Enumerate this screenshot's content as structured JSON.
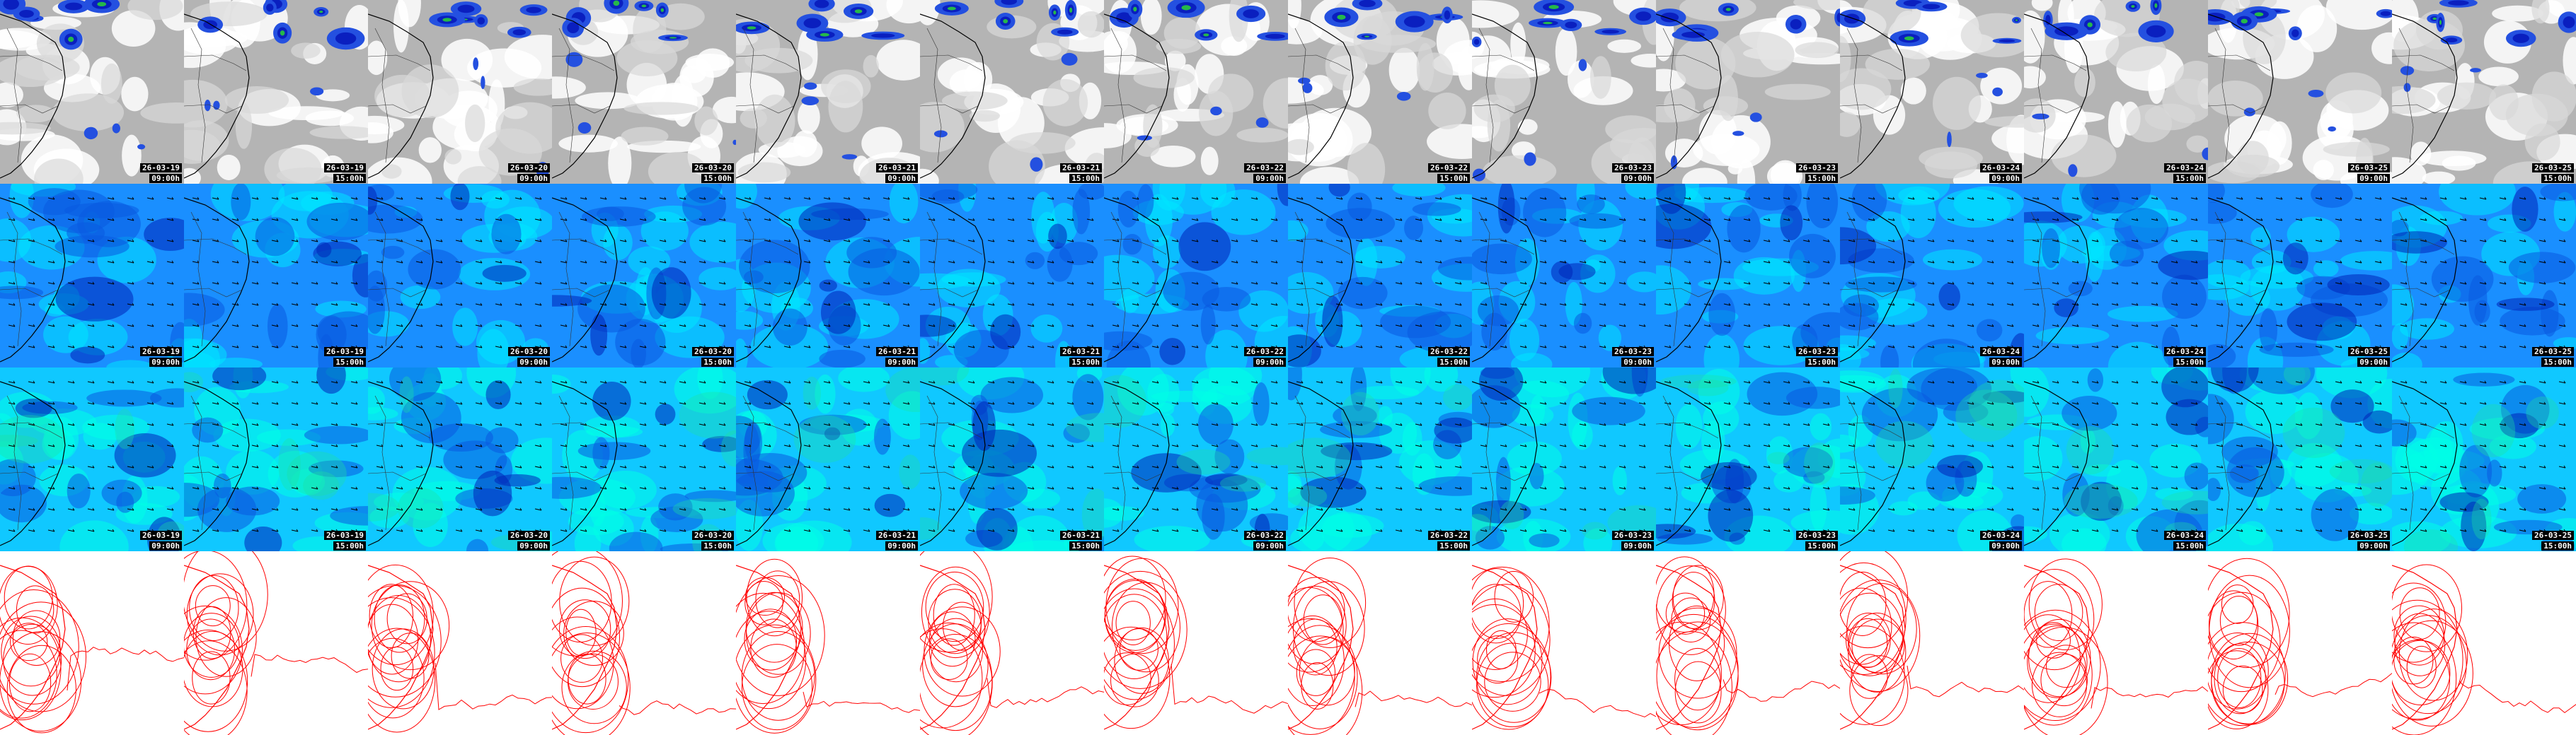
{
  "rows": [
    {
      "name": "cloud-precip-row",
      "kind": "cloud",
      "background": "#b4b4b4",
      "accent": [
        "#2450e0",
        "#0a1fbf",
        "#25b84a",
        "#ffffff"
      ]
    },
    {
      "name": "wind-low-row",
      "kind": "wind",
      "background": "#1a8fff",
      "accent": [
        "#00e6ff",
        "#0a5ae0",
        "#0024b8"
      ]
    },
    {
      "name": "wind-high-row",
      "kind": "wind",
      "background": "#10c8ff",
      "accent": [
        "#00ffe6",
        "#20e0a0",
        "#0a5ae0",
        "#0024b8"
      ]
    },
    {
      "name": "pressure-contour-row",
      "kind": "contour",
      "background": "#ffffff",
      "accent": [
        "#ff0000"
      ]
    }
  ],
  "columns": [
    {
      "date": "26-03-19",
      "time": "09:00h"
    },
    {
      "date": "26-03-19",
      "time": "15:00h"
    },
    {
      "date": "26-03-20",
      "time": "09:00h"
    },
    {
      "date": "26-03-20",
      "time": "15:00h"
    },
    {
      "date": "26-03-21",
      "time": "09:00h"
    },
    {
      "date": "26-03-21",
      "time": "15:00h"
    },
    {
      "date": "26-03-22",
      "time": "09:00h"
    },
    {
      "date": "26-03-22",
      "time": "15:00h"
    },
    {
      "date": "26-03-23",
      "time": "09:00h"
    },
    {
      "date": "26-03-23",
      "time": "15:00h"
    },
    {
      "date": "26-03-24",
      "time": "09:00h"
    },
    {
      "date": "26-03-24",
      "time": "15:00h"
    },
    {
      "date": "26-03-25",
      "time": "09:00h"
    },
    {
      "date": "26-03-25",
      "time": "15:00h"
    }
  ],
  "show_stamps_on_rows": [
    "cloud-precip-row",
    "wind-low-row",
    "wind-high-row"
  ]
}
